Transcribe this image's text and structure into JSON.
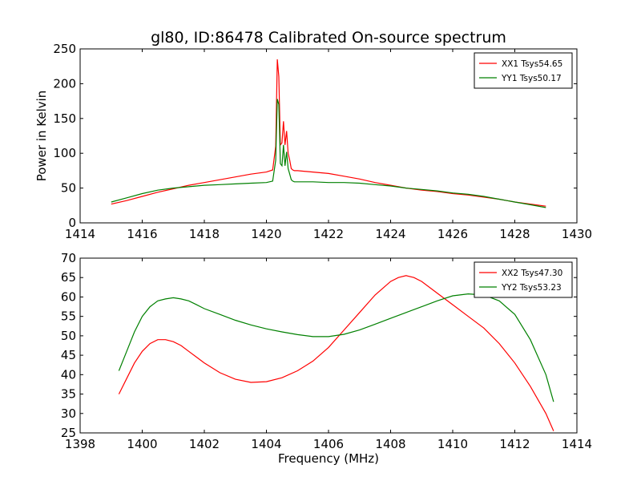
{
  "figure": {
    "title": "gl80, ID:86478 Calibrated On-source spectrum"
  },
  "chart_data": [
    {
      "type": "line",
      "title": "gl80, ID:86478 Calibrated On-source spectrum",
      "xlabel": "",
      "ylabel": "Power in Kelvin",
      "xlim": [
        1414,
        1430
      ],
      "ylim": [
        0,
        250
      ],
      "xticks": [
        1414,
        1416,
        1418,
        1420,
        1422,
        1424,
        1426,
        1428,
        1430
      ],
      "yticks": [
        0,
        50,
        100,
        150,
        200,
        250
      ],
      "grid": false,
      "legend": "top-right",
      "series": [
        {
          "name": "XX1 Tsys54.65",
          "color": "#ff0000",
          "x": [
            1415,
            1415.5,
            1416,
            1416.5,
            1417,
            1417.5,
            1418,
            1418.5,
            1419,
            1419.5,
            1420,
            1420.2,
            1420.3,
            1420.35,
            1420.4,
            1420.45,
            1420.5,
            1420.55,
            1420.6,
            1420.65,
            1420.7,
            1420.75,
            1420.8,
            1420.85,
            1420.9,
            1421,
            1421.5,
            1422,
            1422.5,
            1423,
            1423.5,
            1424,
            1424.5,
            1425,
            1425.5,
            1426,
            1426.5,
            1427,
            1427.5,
            1428,
            1428.5,
            1429
          ],
          "y": [
            27,
            32,
            38,
            44,
            49,
            54,
            58,
            62,
            66,
            70,
            73,
            76,
            110,
            235,
            210,
            112,
            115,
            146,
            112,
            132,
            100,
            90,
            78,
            76,
            75,
            75,
            73,
            71,
            67,
            63,
            58,
            54,
            50,
            47,
            45,
            42,
            40,
            37,
            34,
            30,
            27,
            24
          ]
        },
        {
          "name": "YY1 Tsys50.17",
          "color": "#008000",
          "x": [
            1415,
            1415.5,
            1416,
            1416.5,
            1417,
            1417.5,
            1418,
            1418.5,
            1419,
            1419.5,
            1420,
            1420.2,
            1420.3,
            1420.35,
            1420.4,
            1420.45,
            1420.5,
            1420.55,
            1420.6,
            1420.65,
            1420.7,
            1420.75,
            1420.8,
            1420.85,
            1420.9,
            1421,
            1421.5,
            1422,
            1422.5,
            1423,
            1423.5,
            1424,
            1424.5,
            1425,
            1425.5,
            1426,
            1426.5,
            1427,
            1427.5,
            1428,
            1428.5,
            1429
          ],
          "y": [
            30,
            36,
            42,
            47,
            50,
            52,
            54,
            55,
            56,
            57,
            58,
            60,
            90,
            178,
            170,
            85,
            82,
            112,
            82,
            102,
            78,
            70,
            62,
            60,
            59,
            59,
            59,
            58,
            58,
            57,
            55,
            53,
            50,
            48,
            46,
            43,
            41,
            38,
            34,
            30,
            26,
            22
          ]
        }
      ]
    },
    {
      "type": "line",
      "title": "",
      "xlabel": "Frequency (MHz)",
      "ylabel": "",
      "xlim": [
        1398,
        1414
      ],
      "ylim": [
        25,
        70
      ],
      "xticks": [
        1398,
        1400,
        1402,
        1404,
        1406,
        1408,
        1410,
        1412,
        1414
      ],
      "yticks": [
        25,
        30,
        35,
        40,
        45,
        50,
        55,
        60,
        65,
        70
      ],
      "grid": false,
      "legend": "top-right",
      "series": [
        {
          "name": "XX2 Tsys47.30",
          "color": "#ff0000",
          "x": [
            1399.25,
            1399.5,
            1399.75,
            1400,
            1400.25,
            1400.5,
            1400.75,
            1401,
            1401.25,
            1401.5,
            1401.75,
            1402,
            1402.5,
            1403,
            1403.5,
            1404,
            1404.5,
            1405,
            1405.5,
            1406,
            1406.5,
            1407,
            1407.5,
            1408,
            1408.25,
            1408.5,
            1408.75,
            1409,
            1409.5,
            1410,
            1410.5,
            1411,
            1411.5,
            1412,
            1412.5,
            1413,
            1413.25
          ],
          "y": [
            35,
            39,
            43,
            46,
            48,
            49,
            49,
            48.5,
            47.5,
            46,
            44.5,
            43,
            40.5,
            38.8,
            38,
            38.2,
            39.2,
            41,
            43.5,
            47,
            51.5,
            56,
            60.5,
            64,
            65,
            65.5,
            65,
            64,
            61,
            58,
            55,
            52,
            48,
            43,
            37,
            30,
            25.5
          ]
        },
        {
          "name": "YY2 Tsys53.23",
          "color": "#008000",
          "x": [
            1399.25,
            1399.5,
            1399.75,
            1400,
            1400.25,
            1400.5,
            1400.75,
            1401,
            1401.25,
            1401.5,
            1401.75,
            1402,
            1402.5,
            1403,
            1403.5,
            1404,
            1404.5,
            1405,
            1405.5,
            1406,
            1406.5,
            1407,
            1407.5,
            1408,
            1408.5,
            1409,
            1409.5,
            1410,
            1410.5,
            1411,
            1411.5,
            1412,
            1412.5,
            1413,
            1413.25
          ],
          "y": [
            41,
            46,
            51,
            55,
            57.5,
            59,
            59.5,
            59.8,
            59.5,
            59,
            58,
            57,
            55.5,
            54,
            52.8,
            51.8,
            51,
            50.3,
            49.8,
            49.8,
            50.4,
            51.5,
            53,
            54.5,
            56,
            57.5,
            59,
            60.3,
            60.8,
            60.5,
            59,
            55.5,
            49,
            40,
            33
          ]
        }
      ]
    }
  ]
}
